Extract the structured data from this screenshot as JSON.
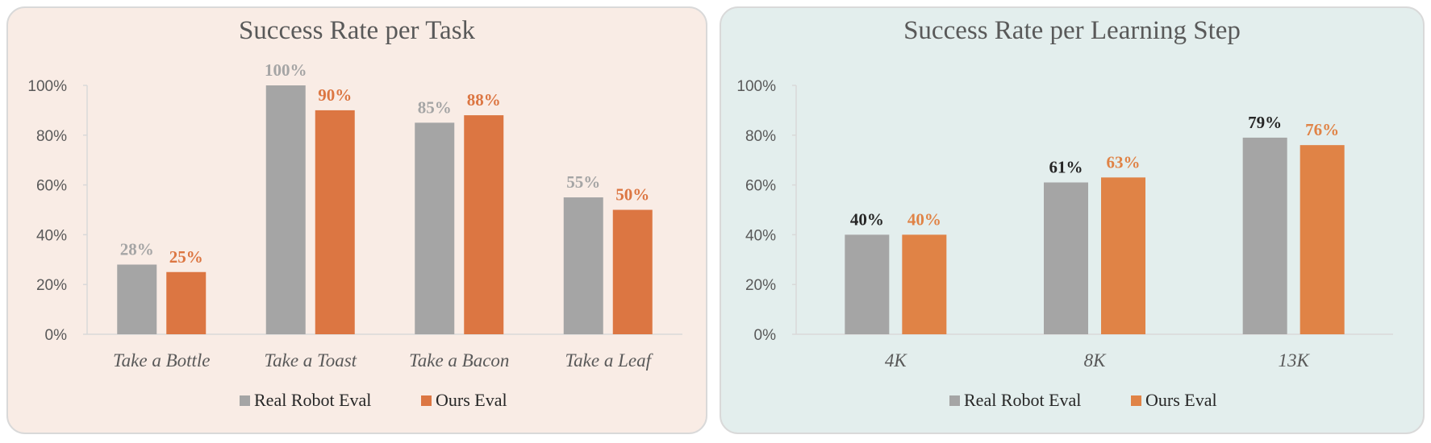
{
  "chart_data": [
    {
      "type": "bar",
      "title": "Success Rate per Task",
      "categories": [
        "Take a Bottle",
        "Take a Toast",
        "Take a Bacon",
        "Take a Leaf"
      ],
      "series": [
        {
          "name": "Real Robot Eval",
          "values": [
            28,
            100,
            85,
            55
          ],
          "labels": [
            "28%",
            "100%",
            "85%",
            "55%"
          ],
          "color": "#a5a5a5",
          "label_color": "#a5a5a5"
        },
        {
          "name": "Ours Eval",
          "values": [
            25,
            90,
            88,
            50
          ],
          "labels": [
            "25%",
            "90%",
            "88%",
            "50%"
          ],
          "color": "#dc7642",
          "label_color": "#dc7642"
        }
      ],
      "yticks": [
        "0%",
        "20%",
        "40%",
        "60%",
        "80%",
        "100%"
      ],
      "ylim": [
        0,
        100
      ],
      "xlabel": "",
      "ylabel": "",
      "grid": false,
      "legend": "bottom",
      "background": "#f9ece5"
    },
    {
      "type": "bar",
      "title": "Success Rate per Learning Step",
      "categories": [
        "4K",
        "8K",
        "13K"
      ],
      "series": [
        {
          "name": "Real Robot Eval",
          "values": [
            40,
            61,
            79
          ],
          "labels": [
            "40%",
            "61%",
            "79%"
          ],
          "color": "#a5a5a5",
          "label_color": "#262626"
        },
        {
          "name": "Ours Eval",
          "values": [
            40,
            63,
            76
          ],
          "labels": [
            "40%",
            "63%",
            "76%"
          ],
          "color": "#e08346",
          "label_color": "#e08346"
        }
      ],
      "yticks": [
        "0%",
        "20%",
        "40%",
        "60%",
        "80%",
        "100%"
      ],
      "ylim": [
        0,
        100
      ],
      "xlabel": "",
      "ylabel": "",
      "grid": false,
      "legend": "bottom",
      "background": "#e3eeed"
    }
  ]
}
